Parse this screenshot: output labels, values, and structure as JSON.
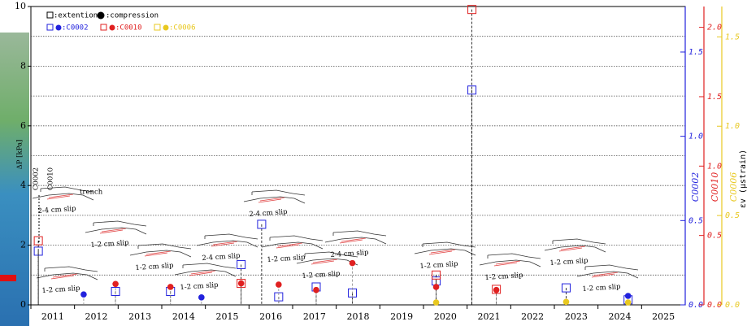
{
  "chart_data": {
    "type": "scatter",
    "ylabel": "ΔP [kPa]",
    "xlim": [
      2011,
      2026
    ],
    "xticks": [
      {
        "value": 2011,
        "label": "2011"
      },
      {
        "value": 2012,
        "label": "2012"
      },
      {
        "value": 2013,
        "label": "2013"
      },
      {
        "value": 2014,
        "label": "2014"
      },
      {
        "value": 2015,
        "label": "2015"
      },
      {
        "value": 2016,
        "label": "2016"
      },
      {
        "value": 2017,
        "label": "2017"
      },
      {
        "value": 2018,
        "label": "2018"
      },
      {
        "value": 2019,
        "label": "2019"
      },
      {
        "value": 2020,
        "label": "2020"
      },
      {
        "value": 2021,
        "label": "2021"
      },
      {
        "value": 2022,
        "label": "2022"
      },
      {
        "value": 2023,
        "label": "2023"
      },
      {
        "value": 2024,
        "label": "2024"
      },
      {
        "value": 2025,
        "label": "2025"
      }
    ],
    "ylim": [
      0,
      10
    ],
    "yticks": [
      0,
      2,
      4,
      6,
      8,
      10
    ],
    "ygrid": [
      1,
      2,
      3,
      4,
      5,
      6,
      7,
      8,
      9
    ],
    "right_axes": [
      {
        "name": "C0002",
        "color": "#2222dd",
        "ylim": [
          0,
          1.77
        ],
        "ticks": [
          {
            "value": 0,
            "label": "0.0"
          },
          {
            "value": 0.5,
            "label": "0.5"
          },
          {
            "value": 1,
            "label": "1.0"
          },
          {
            "value": 1.5,
            "label": "1.5"
          }
        ]
      },
      {
        "name": "C0010",
        "color": "#e02020",
        "ylim": [
          0,
          2.15
        ],
        "ticks": [
          {
            "value": 0,
            "label": "0.0"
          },
          {
            "value": 0.5,
            "label": "0.5"
          },
          {
            "value": 1,
            "label": "1.0"
          },
          {
            "value": 1.5,
            "label": "1.5"
          },
          {
            "value": 2,
            "label": "2.0"
          }
        ]
      },
      {
        "name": "C0006",
        "color": "#e8c820",
        "ylim": [
          0,
          1.67
        ],
        "ticks": [
          {
            "value": 0,
            "label": "0.0"
          },
          {
            "value": 0.5,
            "label": "0.5"
          },
          {
            "value": 1,
            "label": "1.0"
          },
          {
            "value": 1.5,
            "label": "1.5"
          }
        ]
      }
    ],
    "right_label": "εv (μstrain)",
    "legend": {
      "extension": ":extention",
      "compression": ":compression",
      "stations": [
        ":C0002",
        ":C0010",
        ":C0006"
      ],
      "station_colors": [
        "#2222dd",
        "#e02020",
        "#e8c820"
      ]
    },
    "series": [
      {
        "name": "C0002",
        "marker": "square",
        "color": "#2222dd",
        "x": [
          2011.17,
          2012.94,
          2014.2,
          2015.82,
          2016.29,
          2016.68,
          2017.54,
          2018.37,
          2020.29,
          2021.11,
          2023.27,
          2024.69
        ],
        "values": [
          1.8,
          0.45,
          0.45,
          1.35,
          2.7,
          0.27,
          0.6,
          0.4,
          0.8,
          7.2,
          0.57,
          0.17
        ]
      },
      {
        "name": "C0002",
        "marker": "circle",
        "color": "#2222dd",
        "x": [
          2012.21,
          2014.91,
          2024.69
        ],
        "values": [
          0.35,
          0.25,
          0.3
        ]
      },
      {
        "name": "C0010",
        "marker": "square",
        "color": "#e02020",
        "x": [
          2011.17,
          2015.82,
          2020.29,
          2021.11,
          2021.67
        ],
        "values": [
          2.15,
          0.72,
          1.0,
          9.9,
          0.52
        ]
      },
      {
        "name": "C0010",
        "marker": "circle",
        "color": "#e02020",
        "x": [
          2012.94,
          2014.2,
          2015.82,
          2016.68,
          2017.54,
          2018.37,
          2020.29,
          2021.67
        ],
        "values": [
          0.7,
          0.6,
          0.72,
          0.68,
          0.5,
          1.4,
          0.6,
          0.5
        ]
      },
      {
        "name": "C0006",
        "marker": "circle",
        "color": "#e8c820",
        "x": [
          2020.29,
          2023.27,
          2024.69
        ],
        "values": [
          0.08,
          0.1,
          0.08
        ]
      }
    ],
    "annotations": [
      "2-4 cm slip",
      "1-2 cm slip",
      "1-2 cm slip",
      "1-2 cm slip",
      "1-2 cm slip",
      "2-4 cm slip",
      "2-4 cm slip",
      "1-2 cm slip",
      "1-2 cm slip",
      "2-4 cm slip",
      "1-2 cm slip",
      "1-2 cm slip",
      "1-2 cm slip",
      "1-2 cm slip"
    ],
    "sketch_labels": [
      "trench",
      "C0002",
      "C0010"
    ]
  }
}
